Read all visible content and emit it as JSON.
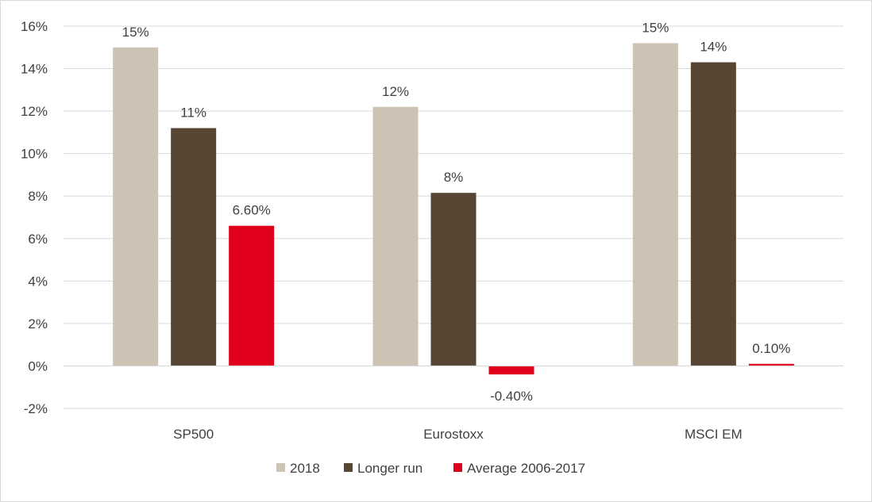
{
  "chart_data": {
    "type": "bar",
    "title": "",
    "xlabel": "",
    "ylabel": "",
    "categories": [
      "SP500",
      "Eurostoxx",
      "MSCI EM"
    ],
    "series": [
      {
        "name": "2018",
        "color": "#cdc3b5",
        "values": [
          15.0,
          12.2,
          15.2
        ],
        "labels": [
          "15%",
          "12%",
          "15%"
        ]
      },
      {
        "name": "Longer run",
        "color": "#574634",
        "values": [
          11.2,
          8.15,
          14.3
        ],
        "labels": [
          "11%",
          "8%",
          "14%"
        ]
      },
      {
        "name": "Average 2006-2017",
        "color": "#e0001b",
        "values": [
          6.6,
          -0.4,
          0.1
        ],
        "labels": [
          "6.60%",
          "-0.40%",
          "0.10%"
        ]
      }
    ],
    "ylim": [
      -2,
      16
    ],
    "yticks": [
      -2,
      0,
      2,
      4,
      6,
      8,
      10,
      12,
      14,
      16
    ],
    "ytick_labels": [
      "-2%",
      "0%",
      "2%",
      "4%",
      "6%",
      "8%",
      "10%",
      "12%",
      "14%",
      "16%"
    ],
    "grid": true,
    "legend_position": "bottom"
  }
}
